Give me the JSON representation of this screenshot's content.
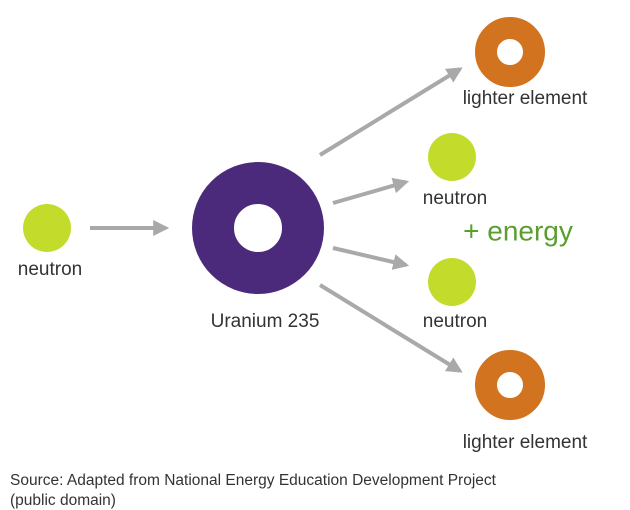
{
  "incoming_neutron": {
    "label": "neutron"
  },
  "nucleus": {
    "label": "Uranium 235"
  },
  "products": [
    {
      "label": "lighter element"
    },
    {
      "label": "neutron"
    },
    {
      "label": "neutron"
    },
    {
      "label": "lighter element"
    }
  ],
  "energy_label": "+ energy",
  "source": {
    "line1": "Source: Adapted from National Energy Education Development Project",
    "line2": "(public domain)"
  }
}
